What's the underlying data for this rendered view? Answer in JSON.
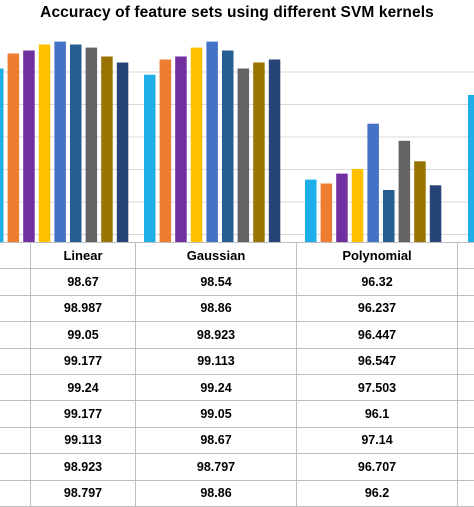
{
  "chart_data": {
    "type": "bar",
    "title": "Accuracy of feature sets using different SVM kernels",
    "categories": [
      "Linear",
      "Gaussian",
      "Polynomial"
    ],
    "ylim": [
      95.0,
      99.4
    ],
    "grid": true,
    "series": [
      {
        "values": [
          98.67,
          98.54,
          96.32
        ],
        "color": "#1eaee8"
      },
      {
        "values": [
          98.987,
          98.86,
          96.237
        ],
        "color": "#ed7d31"
      },
      {
        "values": [
          99.05,
          98.923,
          96.447
        ],
        "color": "#7030a0"
      },
      {
        "values": [
          99.177,
          99.113,
          96.547
        ],
        "color": "#ffc000"
      },
      {
        "values": [
          99.24,
          99.24,
          97.503
        ],
        "color": "#4472c4"
      },
      {
        "values": [
          99.177,
          99.05,
          96.1
        ],
        "color": "#255e91"
      },
      {
        "values": [
          99.113,
          98.67,
          97.14
        ],
        "color": "#636363"
      },
      {
        "values": [
          98.923,
          98.797,
          96.707
        ],
        "color": "#997300"
      },
      {
        "values": [
          98.797,
          98.86,
          96.2
        ],
        "color": "#264478"
      }
    ]
  }
}
